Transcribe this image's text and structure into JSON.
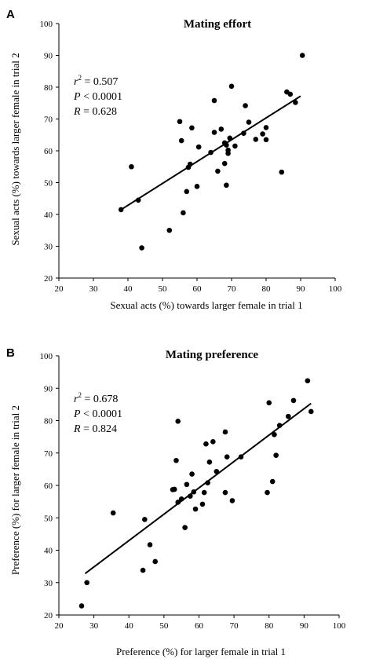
{
  "chart_data": [
    {
      "type": "scatter",
      "panel_label": "A",
      "title": "Mating effort",
      "xlabel": "Sexual acts (%) towards larger female in trial 1",
      "ylabel": "Sexual acts (%) towards larger female in trial 2",
      "xlim": [
        20,
        100
      ],
      "ylim": [
        20,
        100
      ],
      "xticks": [
        20,
        30,
        40,
        50,
        60,
        70,
        80,
        90,
        100
      ],
      "yticks": [
        20,
        30,
        40,
        50,
        60,
        70,
        80,
        90,
        100
      ],
      "grid": false,
      "stats": [
        "r² = 0.507",
        "P < 0.0001",
        "R = 0.628"
      ],
      "regression": {
        "x": [
          38,
          90
        ],
        "y": [
          41.5,
          77.2
        ]
      },
      "points": [
        {
          "x": 38,
          "y": 41.5
        },
        {
          "x": 41,
          "y": 55
        },
        {
          "x": 43,
          "y": 44.5
        },
        {
          "x": 44,
          "y": 29.5
        },
        {
          "x": 52,
          "y": 35
        },
        {
          "x": 55,
          "y": 69.2
        },
        {
          "x": 55.5,
          "y": 63.2
        },
        {
          "x": 56,
          "y": 40.5
        },
        {
          "x": 57,
          "y": 47.2
        },
        {
          "x": 57.5,
          "y": 54.8
        },
        {
          "x": 58,
          "y": 55.8
        },
        {
          "x": 58.5,
          "y": 67.2
        },
        {
          "x": 60,
          "y": 48.8
        },
        {
          "x": 60.5,
          "y": 61.2
        },
        {
          "x": 64,
          "y": 59.5
        },
        {
          "x": 65,
          "y": 75.8
        },
        {
          "x": 65,
          "y": 65.8
        },
        {
          "x": 66,
          "y": 53.6
        },
        {
          "x": 67,
          "y": 66.8
        },
        {
          "x": 68,
          "y": 62.5
        },
        {
          "x": 68.5,
          "y": 61.8
        },
        {
          "x": 68,
          "y": 56
        },
        {
          "x": 68.5,
          "y": 49.2
        },
        {
          "x": 69,
          "y": 60.2
        },
        {
          "x": 69,
          "y": 59.2
        },
        {
          "x": 69.5,
          "y": 64
        },
        {
          "x": 70,
          "y": 80.3
        },
        {
          "x": 71,
          "y": 61.5
        },
        {
          "x": 73.5,
          "y": 65.5
        },
        {
          "x": 74,
          "y": 74.2
        },
        {
          "x": 75,
          "y": 69
        },
        {
          "x": 77,
          "y": 63.6
        },
        {
          "x": 79,
          "y": 65.3
        },
        {
          "x": 80,
          "y": 67.3
        },
        {
          "x": 80,
          "y": 63.5
        },
        {
          "x": 84.5,
          "y": 53.3
        },
        {
          "x": 86,
          "y": 78.5
        },
        {
          "x": 87,
          "y": 77.8
        },
        {
          "x": 88.5,
          "y": 75.2
        },
        {
          "x": 90.5,
          "y": 90
        }
      ]
    },
    {
      "type": "scatter",
      "panel_label": "B",
      "title": "Mating preference",
      "xlabel": "Preference (%) for larger female in trial 1",
      "ylabel": "Preference (%) for larger female in trial 2",
      "xlim": [
        20,
        100
      ],
      "ylim": [
        20,
        100
      ],
      "xticks": [
        20,
        30,
        40,
        50,
        60,
        70,
        80,
        90,
        100
      ],
      "yticks": [
        20,
        30,
        40,
        50,
        60,
        70,
        80,
        90,
        100
      ],
      "grid": false,
      "stats": [
        "r² = 0.678",
        "P < 0.0001",
        "R = 0.824"
      ],
      "regression": {
        "x": [
          27.5,
          92
        ],
        "y": [
          32.8,
          85.3
        ]
      },
      "points": [
        {
          "x": 26.5,
          "y": 22.8
        },
        {
          "x": 28,
          "y": 30
        },
        {
          "x": 35.5,
          "y": 51.5
        },
        {
          "x": 44,
          "y": 33.8
        },
        {
          "x": 44.5,
          "y": 49.5
        },
        {
          "x": 46,
          "y": 41.7
        },
        {
          "x": 47.5,
          "y": 36.5
        },
        {
          "x": 52.5,
          "y": 58.7
        },
        {
          "x": 53,
          "y": 58.8
        },
        {
          "x": 53.5,
          "y": 67.7
        },
        {
          "x": 54,
          "y": 79.8
        },
        {
          "x": 54,
          "y": 54.8
        },
        {
          "x": 55,
          "y": 55.8
        },
        {
          "x": 56,
          "y": 47
        },
        {
          "x": 56.5,
          "y": 60.3
        },
        {
          "x": 57.5,
          "y": 56.7
        },
        {
          "x": 58,
          "y": 63.5
        },
        {
          "x": 58.5,
          "y": 58
        },
        {
          "x": 59,
          "y": 52.7
        },
        {
          "x": 61,
          "y": 54.2
        },
        {
          "x": 61.5,
          "y": 57.8
        },
        {
          "x": 62.5,
          "y": 60.8
        },
        {
          "x": 62,
          "y": 72.8
        },
        {
          "x": 63,
          "y": 67.2
        },
        {
          "x": 64,
          "y": 73.5
        },
        {
          "x": 65,
          "y": 64.3
        },
        {
          "x": 67.5,
          "y": 57.8
        },
        {
          "x": 67.5,
          "y": 76.5
        },
        {
          "x": 68,
          "y": 68.8
        },
        {
          "x": 69.5,
          "y": 55.3
        },
        {
          "x": 72,
          "y": 68.8
        },
        {
          "x": 79.5,
          "y": 57.8
        },
        {
          "x": 80,
          "y": 85.5
        },
        {
          "x": 81,
          "y": 61.2
        },
        {
          "x": 81.5,
          "y": 75.7
        },
        {
          "x": 82,
          "y": 69.3
        },
        {
          "x": 83,
          "y": 78.5
        },
        {
          "x": 85.5,
          "y": 81.3
        },
        {
          "x": 87,
          "y": 86.2
        },
        {
          "x": 91,
          "y": 92.3
        },
        {
          "x": 92,
          "y": 82.8
        }
      ]
    }
  ]
}
